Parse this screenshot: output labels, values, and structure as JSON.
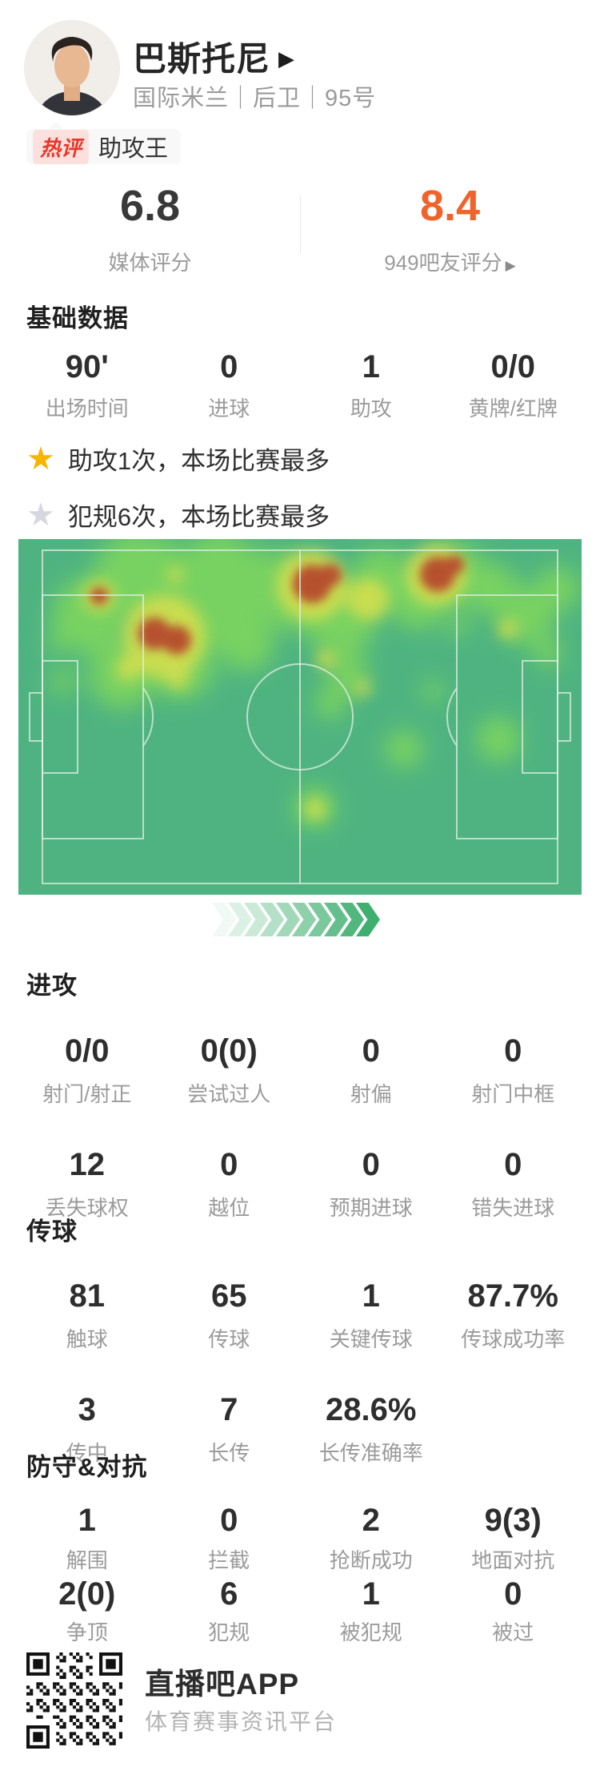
{
  "player": {
    "name": "巴斯托尼",
    "team_position": "国际米兰｜后卫｜95号"
  },
  "hot_comment": {
    "tag": "热评",
    "text": "助攻王"
  },
  "ratings": {
    "media": {
      "value": "6.8",
      "label": "媒体评分"
    },
    "fan": {
      "value": "8.4",
      "label": "949吧友评分"
    }
  },
  "basic": {
    "title": "基础数据",
    "stats": [
      {
        "value": "90'",
        "label": "出场时间"
      },
      {
        "value": "0",
        "label": "进球"
      },
      {
        "value": "1",
        "label": "助攻"
      },
      {
        "value": "0/0",
        "label": "黄牌/红牌"
      }
    ]
  },
  "highlights": [
    {
      "icon": "gold-star",
      "text": "助攻1次，本场比赛最多"
    },
    {
      "icon": "gray-star",
      "text": "犯规6次，本场比赛最多"
    }
  ],
  "attack": {
    "title": "进攻",
    "stats": [
      {
        "value": "0/0",
        "label": "射门/射正"
      },
      {
        "value": "0(0)",
        "label": "尝试过人"
      },
      {
        "value": "0",
        "label": "射偏"
      },
      {
        "value": "0",
        "label": "射门中框"
      },
      {
        "value": "12",
        "label": "丢失球权"
      },
      {
        "value": "0",
        "label": "越位"
      },
      {
        "value": "0",
        "label": "预期进球"
      },
      {
        "value": "0",
        "label": "错失进球"
      }
    ]
  },
  "passing": {
    "title": "传球",
    "stats": [
      {
        "value": "81",
        "label": "触球"
      },
      {
        "value": "65",
        "label": "传球"
      },
      {
        "value": "1",
        "label": "关键传球"
      },
      {
        "value": "87.7%",
        "label": "传球成功率"
      },
      {
        "value": "3",
        "label": "传中"
      },
      {
        "value": "7",
        "label": "长传"
      },
      {
        "value": "28.6%",
        "label": "长传准确率"
      }
    ]
  },
  "defense": {
    "title": "防守&对抗",
    "stats": [
      {
        "value": "1",
        "label": "解围"
      },
      {
        "value": "0",
        "label": "拦截"
      },
      {
        "value": "2",
        "label": "抢断成功"
      },
      {
        "value": "9(3)",
        "label": "地面对抗"
      },
      {
        "value": "2(0)",
        "label": "争顶"
      },
      {
        "value": "6",
        "label": "犯规"
      },
      {
        "value": "1",
        "label": "被犯规"
      },
      {
        "value": "0",
        "label": "被过"
      }
    ]
  },
  "footer": {
    "app_name": "直播吧APP",
    "tagline": "体育赛事资讯平台"
  },
  "colors": {
    "accent_orange": "#f0632a",
    "star_gold": "#f7b500",
    "star_gray": "#d7d7df",
    "hot_red": "#e9372b",
    "pitch_green": "#4eb381",
    "chevron_green": "#3faf6f"
  },
  "decor": {
    "chevron_count": 10
  },
  "heatmap": {
    "description": "player position heatmap on horizontal pitch, activity concentrated in left-half and upper band",
    "blobs": {
      "green": [
        [
          150,
          45,
          55
        ],
        [
          90,
          95,
          48
        ],
        [
          230,
          85,
          55
        ],
        [
          300,
          55,
          42
        ],
        [
          252,
          30,
          40
        ],
        [
          196,
          48,
          40
        ],
        [
          130,
          170,
          42
        ],
        [
          205,
          160,
          40
        ],
        [
          285,
          130,
          35
        ],
        [
          55,
          178,
          16
        ],
        [
          48,
          128,
          13
        ],
        [
          340,
          65,
          48
        ],
        [
          402,
          100,
          46
        ],
        [
          455,
          52,
          40
        ],
        [
          500,
          78,
          35
        ],
        [
          545,
          45,
          40
        ],
        [
          592,
          62,
          32
        ],
        [
          412,
          168,
          26
        ],
        [
          390,
          205,
          20
        ],
        [
          371,
          335,
          26
        ],
        [
          482,
          262,
          24
        ],
        [
          600,
          250,
          28
        ],
        [
          634,
          95,
          36
        ],
        [
          674,
          62,
          28
        ],
        [
          550,
          108,
          14
        ],
        [
          518,
          190,
          14
        ],
        [
          662,
          142,
          18
        ]
      ],
      "yellow": [
        [
          182,
          122,
          52
        ],
        [
          101,
          71,
          20
        ],
        [
          367,
          58,
          44
        ],
        [
          522,
          45,
          38
        ],
        [
          437,
          75,
          26
        ],
        [
          137,
          162,
          15
        ],
        [
          199,
          173,
          14
        ],
        [
          385,
          150,
          12
        ],
        [
          371,
          337,
          13
        ],
        [
          612,
          112,
          12
        ],
        [
          196,
          45,
          10
        ],
        [
          430,
          186,
          10
        ]
      ],
      "red": [
        [
          170,
          118,
          20
        ],
        [
          198,
          126,
          18
        ],
        [
          101,
          71,
          11
        ],
        [
          367,
          56,
          24
        ],
        [
          390,
          45,
          14
        ],
        [
          524,
          44,
          22
        ],
        [
          545,
          32,
          12
        ]
      ]
    }
  }
}
